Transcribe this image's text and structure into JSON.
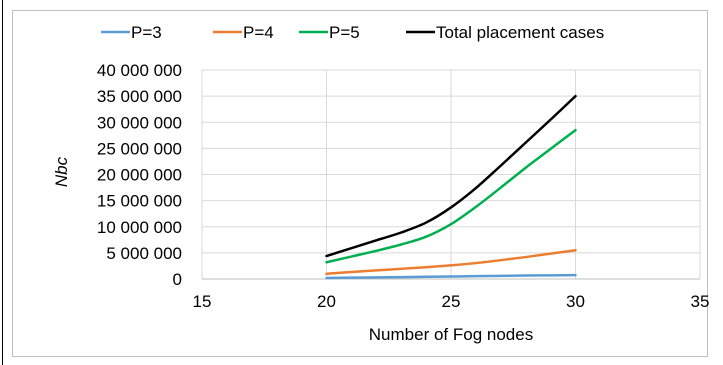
{
  "chart_data": {
    "type": "line",
    "title": "",
    "xlabel": "Number of Fog nodes",
    "ylabel": "Nbc",
    "xlim": [
      15,
      35
    ],
    "ylim": [
      0,
      40000000
    ],
    "x_ticks": [
      15,
      20,
      25,
      30,
      35
    ],
    "x_tick_labels": [
      "15",
      "20",
      "25",
      "30",
      "35"
    ],
    "y_ticks": [
      0,
      5000000,
      10000000,
      15000000,
      20000000,
      25000000,
      30000000,
      35000000,
      40000000
    ],
    "y_tick_labels": [
      "0",
      "5 000 000",
      "10 000 000",
      "15 000 000",
      "20 000 000",
      "25 000 000",
      "30 000 000",
      "35 000 000",
      "40 000 000"
    ],
    "grid": "vertical and horizontal",
    "legend_position": "top",
    "x": [
      20,
      21,
      22,
      23,
      24,
      25,
      26,
      27,
      28,
      29,
      30
    ],
    "series": [
      {
        "name": "P=3",
        "color": "#5b9bd5",
        "values": [
          200000,
          260000,
          310000,
          360000,
          420000,
          480000,
          540000,
          600000,
          660000,
          700000,
          750000
        ]
      },
      {
        "name": "P=4",
        "color": "#ed7d31",
        "values": [
          1000000,
          1350000,
          1650000,
          1950000,
          2250000,
          2600000,
          3050000,
          3600000,
          4200000,
          4850000,
          5500000
        ]
      },
      {
        "name": "P=5",
        "color": "#00b050",
        "values": [
          3200000,
          4300000,
          5400000,
          6600000,
          8100000,
          10500000,
          13800000,
          17500000,
          21300000,
          24900000,
          28500000
        ]
      },
      {
        "name": "Total placement cases",
        "color": "#000000",
        "values": [
          4400000,
          5900000,
          7400000,
          8900000,
          10800000,
          13700000,
          17400000,
          21700000,
          26100000,
          30500000,
          35000000
        ]
      }
    ]
  }
}
